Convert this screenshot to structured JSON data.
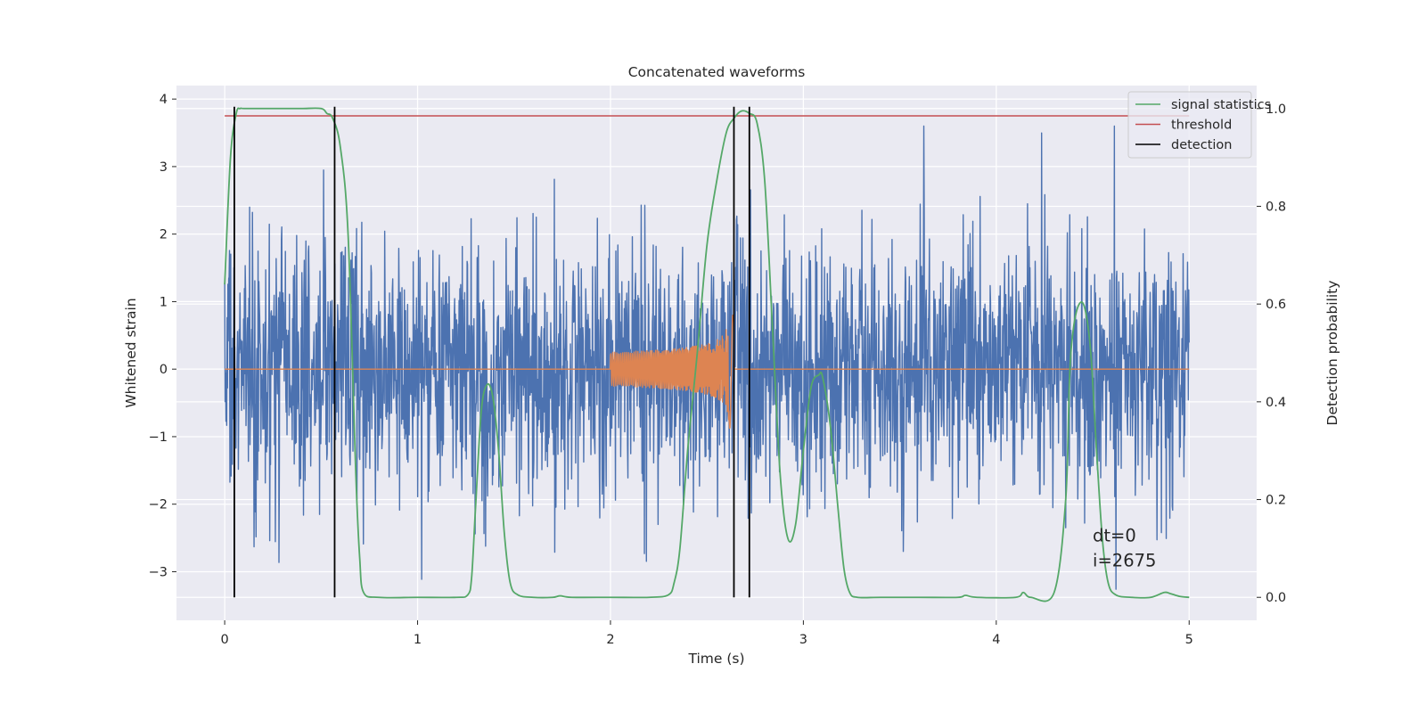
{
  "chart_data": {
    "type": "line",
    "title": "Concatenated waveforms",
    "xlabel": "Time (s)",
    "ylabel": "Whitened strain",
    "y2label": "Detection probability",
    "xlim": [
      -0.25,
      5.35
    ],
    "ylim": [
      -3.72,
      4.2
    ],
    "y2lim": [
      -0.047,
      1.047
    ],
    "x_ticks": [
      0,
      1,
      2,
      3,
      4,
      5
    ],
    "y_ticks": [
      -3,
      -2,
      -1,
      0,
      1,
      2,
      3,
      4
    ],
    "y2_ticks": [
      0.0,
      0.2,
      0.4,
      0.6,
      0.8,
      1.0
    ],
    "x_tick_labels": [
      "0",
      "1",
      "2",
      "3",
      "4",
      "5"
    ],
    "y_tick_labels": [
      "−3",
      "−2",
      "−1",
      "0",
      "1",
      "2",
      "3",
      "4"
    ],
    "y2_tick_labels": [
      "0.0",
      "0.2",
      "0.4",
      "0.6",
      "0.8",
      "1.0"
    ],
    "grid": true,
    "legend_position": "top-right",
    "legend": [
      "signal statistics",
      "threshold",
      "detection"
    ],
    "annotations": [
      "dt=0",
      "i=2675"
    ],
    "series": [
      {
        "axis": "left",
        "color": "#4c72b0",
        "kind": "noise",
        "x_range": [
          0,
          5
        ],
        "typical_amplitude": 1.3,
        "peak_max": 3.6,
        "peak_min": -3.3
      },
      {
        "axis": "left",
        "color": "#dd8452",
        "kind": "chirp",
        "x_range": [
          0,
          5
        ],
        "chirp_start": 2.0,
        "chirp_merger": 2.62,
        "start_amplitude": 0.25,
        "peak_amplitude_positive": 0.8,
        "peak_amplitude_negative": -0.95
      },
      {
        "name": "signal statistics",
        "axis": "right",
        "color": "#55a868",
        "x": [
          0,
          0.03,
          0.06,
          0.08,
          0.1,
          0.2,
          0.3,
          0.4,
          0.5,
          0.53,
          0.56,
          0.6,
          0.64,
          0.68,
          0.7,
          0.72,
          0.8,
          1.0,
          1.2,
          1.26,
          1.28,
          1.3,
          1.33,
          1.36,
          1.39,
          1.42,
          1.45,
          1.48,
          1.52,
          1.6,
          1.7,
          1.74,
          1.8,
          2.0,
          2.2,
          2.3,
          2.33,
          2.36,
          2.4,
          2.45,
          2.5,
          2.55,
          2.6,
          2.64,
          2.68,
          2.72,
          2.76,
          2.8,
          2.84,
          2.88,
          2.92,
          2.96,
          3.0,
          3.04,
          3.08,
          3.1,
          3.14,
          3.18,
          3.21,
          3.24,
          3.28,
          3.4,
          3.6,
          3.8,
          3.84,
          3.9,
          4.1,
          4.14,
          4.18,
          4.3,
          4.36,
          4.38,
          4.4,
          4.43,
          4.46,
          4.49,
          4.52,
          4.55,
          4.58,
          4.62,
          4.7,
          4.8,
          4.87,
          4.9,
          4.95,
          5.0
        ],
        "y": [
          0.64,
          0.9,
          0.99,
          1.0,
          1.0,
          1.0,
          1.0,
          1.0,
          1.0,
          0.99,
          0.98,
          0.92,
          0.74,
          0.25,
          0.08,
          0.01,
          0.0,
          0.0,
          0.0,
          0.005,
          0.04,
          0.18,
          0.38,
          0.435,
          0.41,
          0.3,
          0.13,
          0.03,
          0.005,
          0.0,
          0.0,
          0.003,
          0.0,
          0.0,
          0.0,
          0.005,
          0.03,
          0.1,
          0.3,
          0.5,
          0.72,
          0.85,
          0.95,
          0.98,
          0.995,
          0.99,
          0.97,
          0.85,
          0.55,
          0.25,
          0.12,
          0.15,
          0.3,
          0.43,
          0.455,
          0.45,
          0.35,
          0.18,
          0.06,
          0.01,
          0.0,
          0.0,
          0.0,
          0.0,
          0.004,
          0.0,
          0.0,
          0.01,
          0.0,
          0.01,
          0.2,
          0.45,
          0.55,
          0.6,
          0.59,
          0.5,
          0.3,
          0.12,
          0.03,
          0.005,
          0.0,
          0.0,
          0.01,
          0.008,
          0.002,
          0.0
        ]
      },
      {
        "name": "threshold",
        "axis": "right",
        "color": "#c44e52",
        "x": [
          0,
          5
        ],
        "y": [
          0.985,
          0.985
        ]
      },
      {
        "name": "detection",
        "axis": "right",
        "color": "#000000",
        "type": "vlines",
        "x": [
          0.05,
          0.57,
          2.64,
          2.72
        ],
        "ymin": 0.0,
        "ymax": 1.0
      }
    ]
  }
}
